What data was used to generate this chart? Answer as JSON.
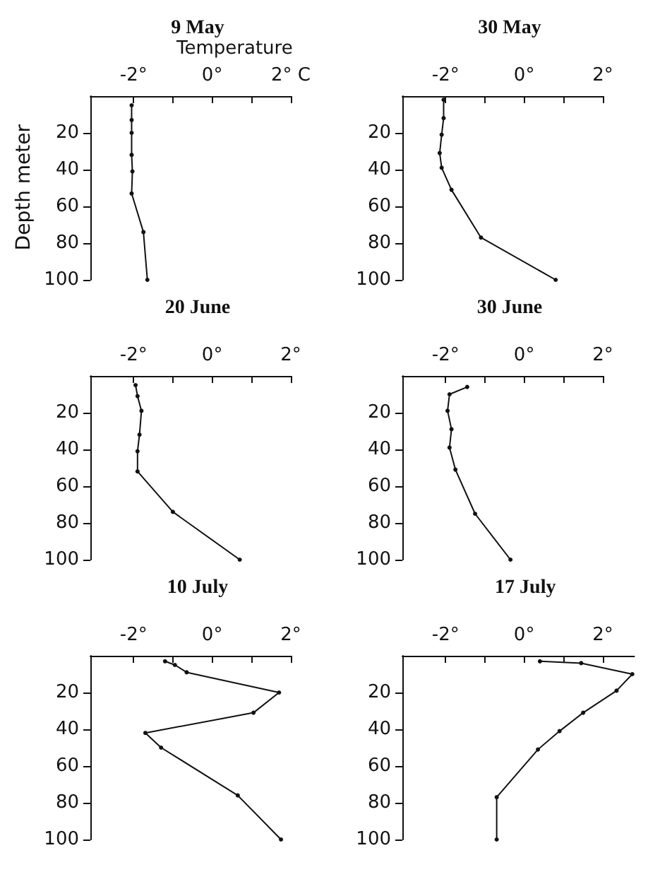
{
  "chart_data": [
    {
      "type": "line",
      "title": "9 May",
      "xlabel": "Temperature",
      "ylabel": "Depth meter",
      "marker": "circle",
      "grid": false,
      "xlim": [
        -3.1,
        2
      ],
      "ylim": [
        100,
        0
      ],
      "xticks": [
        {
          "value": -2,
          "label": "-2°"
        },
        {
          "value": -1,
          "label": null
        },
        {
          "value": 0,
          "label": "0°"
        },
        {
          "value": 1,
          "label": null
        },
        {
          "value": 2,
          "label": "2° C"
        }
      ],
      "yticks": [
        20,
        40,
        60,
        80,
        100
      ],
      "series": [
        {
          "color": "#111111",
          "x": [
            -2.05,
            -2.05,
            -2.05,
            -2.05,
            -2.03,
            -2.05,
            -1.75,
            -1.65
          ],
          "values": [
            5,
            13,
            20,
            32,
            41,
            53,
            74,
            100
          ]
        }
      ]
    },
    {
      "type": "line",
      "title": "30 May",
      "marker": "circle",
      "grid": false,
      "xlim": [
        -3.1,
        2
      ],
      "ylim": [
        100,
        0
      ],
      "xticks": [
        {
          "value": -2,
          "label": "-2°"
        },
        {
          "value": -1,
          "label": null
        },
        {
          "value": 0,
          "label": "0°"
        },
        {
          "value": 1,
          "label": null
        },
        {
          "value": 2,
          "label": "2°"
        }
      ],
      "yticks": [
        20,
        40,
        60,
        80,
        100
      ],
      "series": [
        {
          "color": "#111111",
          "x": [
            -2.05,
            -2.05,
            -2.1,
            -2.15,
            -2.1,
            -1.85,
            -1.1,
            0.8
          ],
          "values": [
            2,
            12,
            21,
            31,
            39,
            51,
            77,
            100
          ]
        }
      ]
    },
    {
      "type": "line",
      "title": "20 June",
      "marker": "circle",
      "grid": false,
      "xlim": [
        -3.1,
        2
      ],
      "ylim": [
        100,
        0
      ],
      "xticks": [
        {
          "value": -2,
          "label": "-2°"
        },
        {
          "value": -1,
          "label": null
        },
        {
          "value": 0,
          "label": "0°"
        },
        {
          "value": 1,
          "label": null
        },
        {
          "value": 2,
          "label": "2°"
        }
      ],
      "yticks": [
        20,
        40,
        60,
        80,
        100
      ],
      "series": [
        {
          "color": "#111111",
          "x": [
            -1.95,
            -1.9,
            -1.8,
            -1.85,
            -1.9,
            -1.9,
            -1.0,
            0.7
          ],
          "values": [
            5,
            11,
            19,
            32,
            41,
            52,
            74,
            100
          ]
        }
      ]
    },
    {
      "type": "line",
      "title": "30 June",
      "marker": "circle",
      "grid": false,
      "xlim": [
        -3.1,
        2
      ],
      "ylim": [
        100,
        0
      ],
      "xticks": [
        {
          "value": -2,
          "label": "-2°"
        },
        {
          "value": -1,
          "label": null
        },
        {
          "value": 0,
          "label": "0°"
        },
        {
          "value": 1,
          "label": null
        },
        {
          "value": 2,
          "label": "2°"
        }
      ],
      "yticks": [
        20,
        40,
        60,
        80,
        100
      ],
      "series": [
        {
          "color": "#111111",
          "x": [
            -1.45,
            -1.9,
            -1.95,
            -1.85,
            -1.9,
            -1.75,
            -1.25,
            -0.35
          ],
          "values": [
            6,
            10,
            19,
            29,
            39,
            51,
            75,
            100
          ]
        }
      ]
    },
    {
      "type": "line",
      "title": "10 July",
      "marker": "circle",
      "grid": false,
      "xlim": [
        -3.1,
        2
      ],
      "ylim": [
        100,
        0
      ],
      "xticks": [
        {
          "value": -2,
          "label": "-2°"
        },
        {
          "value": -1,
          "label": null
        },
        {
          "value": 0,
          "label": "0°"
        },
        {
          "value": 1,
          "label": null
        },
        {
          "value": 2,
          "label": "2°"
        }
      ],
      "yticks": [
        20,
        40,
        60,
        80,
        100
      ],
      "series": [
        {
          "color": "#111111",
          "x": [
            -1.2,
            -0.95,
            -0.65,
            1.7,
            1.05,
            -1.7,
            -1.3,
            0.65,
            1.75
          ],
          "values": [
            3,
            5,
            9,
            20,
            31,
            42,
            50,
            76,
            100
          ]
        }
      ]
    },
    {
      "type": "line",
      "title": "17 July",
      "marker": "circle",
      "grid": false,
      "xlim": [
        -3.1,
        2.8
      ],
      "ylim": [
        100,
        0
      ],
      "xticks": [
        {
          "value": -2,
          "label": "-2°"
        },
        {
          "value": -1,
          "label": null
        },
        {
          "value": 0,
          "label": "0°"
        },
        {
          "value": 1,
          "label": null
        },
        {
          "value": 2,
          "label": "2°"
        }
      ],
      "yticks": [
        20,
        40,
        60,
        80,
        100
      ],
      "series": [
        {
          "color": "#111111",
          "x": [
            0.4,
            1.45,
            2.75,
            2.35,
            1.5,
            0.9,
            0.35,
            -0.7,
            -0.7
          ],
          "values": [
            3,
            4,
            10,
            19,
            31,
            41,
            51,
            77,
            100
          ]
        }
      ]
    }
  ]
}
